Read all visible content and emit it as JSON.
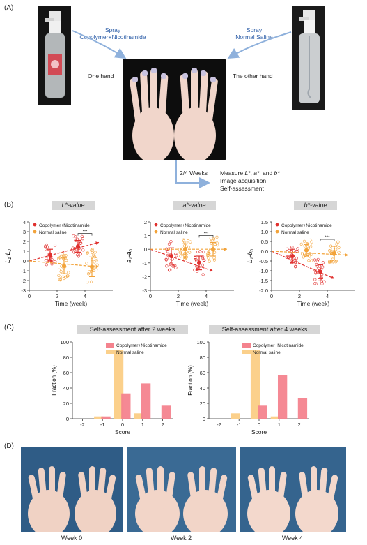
{
  "panels": {
    "a": "(A)",
    "b": "(B)",
    "c": "(C)",
    "d": "(D)"
  },
  "panelA": {
    "spray_left_line1": "Spray",
    "spray_left_line2": "Copolymer+Nicotinamide",
    "spray_right_line1": "Spray",
    "spray_right_line2": "Normal Saline",
    "one_hand": "One hand",
    "other_hand": "The other hand",
    "weeks": "2/4 Weeks",
    "measure_prefix": "Measure ",
    "measure_L": "L*",
    "measure_sep1": ", ",
    "measure_a": "a*",
    "measure_sep2": ", and ",
    "measure_b": "b*",
    "image_acq": "Image acquisition",
    "self_assess": "Self-assessment",
    "arrow_color": "#8fb1dc"
  },
  "colors": {
    "red": "#e0302e",
    "orange": "#f2a33a",
    "pink": "#f4838e",
    "peach": "#fbd08b",
    "title_bg": "#d6d6d6"
  },
  "chart_data": [
    {
      "type": "scatter",
      "title": "L*-value",
      "ylabel_main": "L",
      "ylabel_sub1": "1",
      "ylabel_sub2": "0",
      "xlabel": "Time (week)",
      "xlim": [
        0,
        6
      ],
      "ylim": [
        -3,
        4
      ],
      "xticks": [
        "0",
        "2",
        "4"
      ],
      "yticks": [
        "-3",
        "-2",
        "-1",
        "0",
        "1",
        "2",
        "3",
        "4"
      ],
      "legend": [
        "Copolymer+Nicotinamide",
        "Normal saline"
      ],
      "significance": "***",
      "series": [
        {
          "name": "Copolymer+Nicotinamide",
          "color": "#e0302e",
          "points": [
            [
              1.5,
              0.6
            ],
            [
              3.5,
              1.5
            ]
          ],
          "err": [
            0.6,
            0.6
          ],
          "trend": [
            [
              0,
              0.0
            ],
            [
              5,
              1.9
            ]
          ]
        },
        {
          "name": "Normal saline",
          "color": "#f2a33a",
          "points": [
            [
              2.5,
              -0.5
            ],
            [
              4.5,
              -0.6
            ]
          ],
          "err": [
            0.8,
            1.0
          ],
          "trend": [
            [
              0,
              0.0
            ],
            [
              5,
              -0.6
            ]
          ]
        }
      ]
    },
    {
      "type": "scatter",
      "title": "a*-value",
      "ylabel_main": "a",
      "ylabel_sub1": "1",
      "ylabel_sub2": "0",
      "xlabel": "Time (week)",
      "xlim": [
        0,
        6
      ],
      "ylim": [
        -3,
        2
      ],
      "xticks": [
        "0",
        "2",
        "4"
      ],
      "yticks": [
        "-3",
        "-2",
        "-1",
        "0",
        "1",
        "2"
      ],
      "legend": [
        "Copolymer+Nicotinamide",
        "Normal saline"
      ],
      "significance": "***",
      "series": [
        {
          "name": "Copolymer+Nicotinamide",
          "color": "#e0302e",
          "points": [
            [
              1.5,
              -0.5
            ],
            [
              3.5,
              -1.0
            ]
          ],
          "err": [
            0.6,
            0.5
          ],
          "trend": [
            [
              0,
              0.0
            ],
            [
              4.5,
              -1.6
            ]
          ]
        },
        {
          "name": "Normal saline",
          "color": "#f2a33a",
          "points": [
            [
              2.5,
              0.0
            ],
            [
              4.5,
              0.0
            ]
          ],
          "err": [
            0.4,
            0.5
          ],
          "trend": [
            [
              0,
              0.0
            ],
            [
              5.5,
              0.0
            ]
          ]
        }
      ]
    },
    {
      "type": "scatter",
      "title": "b*-value",
      "ylabel_main": "b",
      "ylabel_sub1": "1",
      "ylabel_sub2": "0",
      "xlabel": "Time (week)",
      "xlim": [
        0,
        6
      ],
      "ylim": [
        -2.0,
        1.5
      ],
      "xticks": [
        "0",
        "2",
        "4"
      ],
      "yticks": [
        "-2.0",
        "-1.5",
        "-1.0",
        "-0.5",
        "0.0",
        "0.5",
        "1.0",
        "1.5"
      ],
      "legend": [
        "Copolymer+Nicotinamide",
        "Normal saline"
      ],
      "significance": "***",
      "series": [
        {
          "name": "Copolymer+Nicotinamide",
          "color": "#e0302e",
          "points": [
            [
              1.5,
              -0.25
            ],
            [
              3.5,
              -1.05
            ]
          ],
          "err": [
            0.35,
            0.35
          ],
          "trend": [
            [
              0,
              0.0
            ],
            [
              4.5,
              -1.4
            ]
          ]
        },
        {
          "name": "Normal saline",
          "color": "#f2a33a",
          "points": [
            [
              2.5,
              0.05
            ],
            [
              4.5,
              -0.1
            ]
          ],
          "err": [
            0.3,
            0.35
          ],
          "trend": [
            [
              0,
              0.0
            ],
            [
              5.5,
              -0.2
            ]
          ]
        }
      ]
    },
    {
      "type": "bar",
      "title": "Self-assessment after 2 weeks",
      "xlabel": "Score",
      "ylabel": "Fraction (%)",
      "ylim": [
        0,
        100
      ],
      "categories": [
        "-2",
        "-1",
        "0",
        "1",
        "2"
      ],
      "yticks": [
        "0",
        "20",
        "40",
        "60",
        "80",
        "100"
      ],
      "series": [
        {
          "name": "Copolymer+Nicotinamide",
          "color": "#f4838e",
          "values": [
            0,
            3,
            33,
            46,
            17
          ]
        },
        {
          "name": "Normal saline",
          "color": "#fbd08b",
          "values": [
            0,
            3,
            90,
            7,
            0
          ]
        }
      ]
    },
    {
      "type": "bar",
      "title": "Self-assessment after 4 weeks",
      "xlabel": "Score",
      "ylabel": "Fraction (%)",
      "ylim": [
        0,
        100
      ],
      "categories": [
        "-2",
        "-1",
        "0",
        "1",
        "2"
      ],
      "yticks": [
        "0",
        "20",
        "40",
        "60",
        "80",
        "100"
      ],
      "series": [
        {
          "name": "Copolymer+Nicotinamide",
          "color": "#f4838e",
          "values": [
            0,
            0,
            17,
            57,
            27
          ]
        },
        {
          "name": "Normal saline",
          "color": "#fbd08b",
          "values": [
            0,
            7,
            90,
            3,
            0
          ]
        }
      ]
    }
  ],
  "panelD": {
    "captions": [
      "Week 0",
      "Week 2",
      "Week 4"
    ]
  }
}
